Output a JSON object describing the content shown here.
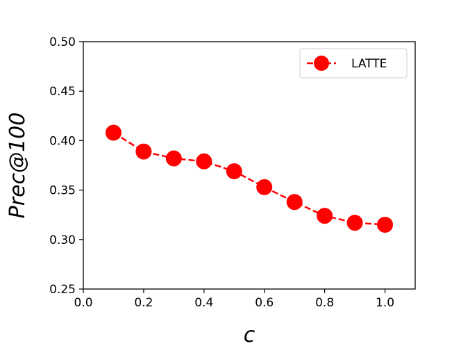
{
  "chart_data": {
    "type": "line",
    "title": "",
    "xlabel": "c",
    "ylabel": "Prec@100",
    "xlim": [
      0.0,
      1.1
    ],
    "ylim": [
      0.25,
      0.5
    ],
    "x_ticks": [
      "0.0",
      "0.2",
      "0.4",
      "0.6",
      "0.8",
      "1.0"
    ],
    "y_ticks": [
      "0.25",
      "0.30",
      "0.35",
      "0.40",
      "0.45",
      "0.50"
    ],
    "grid": false,
    "legend_position": "top-right",
    "series": [
      {
        "name": "LATTE",
        "color": "#ff0000",
        "line_style": "dashed",
        "marker": "circle",
        "x": [
          0.1,
          0.2,
          0.3,
          0.4,
          0.5,
          0.6,
          0.7,
          0.8,
          0.9,
          1.0
        ],
        "y": [
          0.408,
          0.389,
          0.382,
          0.379,
          0.369,
          0.353,
          0.338,
          0.324,
          0.317,
          0.315
        ]
      }
    ]
  }
}
